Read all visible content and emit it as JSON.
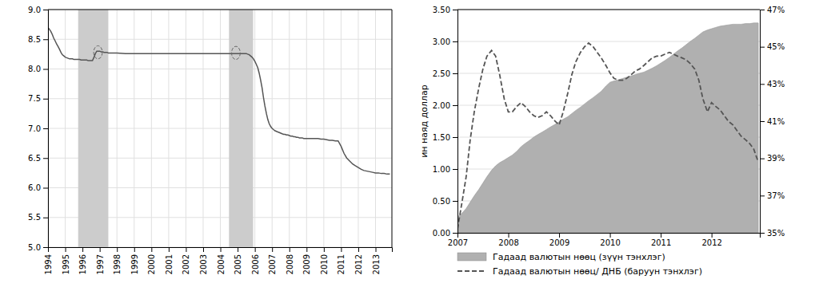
{
  "chart_data": [
    {
      "type": "line",
      "x": [
        1994.0,
        1994.08,
        1994.17,
        1994.25,
        1994.33,
        1994.42,
        1994.5,
        1994.58,
        1994.67,
        1994.75,
        1994.83,
        1994.92,
        1995.0,
        1995.08,
        1995.17,
        1995.25,
        1995.33,
        1995.42,
        1995.5,
        1995.58,
        1995.67,
        1995.75,
        1995.83,
        1995.92,
        1996.0,
        1996.08,
        1996.17,
        1996.25,
        1996.33,
        1996.42,
        1996.5,
        1996.58,
        1996.67,
        1996.75,
        1996.83,
        1996.92,
        1997.0,
        1997.08,
        1997.17,
        1997.25,
        1997.33,
        1997.42,
        1997.5,
        1997.58,
        1997.67,
        1997.75,
        1997.83,
        1997.92,
        1998.0,
        1998.5,
        1999.0,
        1999.5,
        2000.0,
        2000.5,
        2001.0,
        2001.5,
        2002.0,
        2002.5,
        2003.0,
        2003.5,
        2004.0,
        2004.5,
        2005.0,
        2005.08,
        2005.17,
        2005.25,
        2005.33,
        2005.42,
        2005.5,
        2005.58,
        2005.67,
        2005.75,
        2005.83,
        2005.92,
        2006.0,
        2006.08,
        2006.17,
        2006.25,
        2006.33,
        2006.42,
        2006.5,
        2006.58,
        2006.67,
        2006.75,
        2006.83,
        2006.92,
        2007.0,
        2007.08,
        2007.17,
        2007.25,
        2007.33,
        2007.42,
        2007.5,
        2007.58,
        2007.67,
        2007.75,
        2007.83,
        2007.92,
        2008.0,
        2008.08,
        2008.17,
        2008.25,
        2008.33,
        2008.42,
        2008.5,
        2008.58,
        2008.67,
        2008.75,
        2008.83,
        2008.92,
        2009.0,
        2009.17,
        2009.33,
        2009.5,
        2009.67,
        2009.83,
        2010.0,
        2010.17,
        2010.33,
        2010.5,
        2010.67,
        2010.83,
        2011.0,
        2011.17,
        2011.33,
        2011.5,
        2011.67,
        2011.83,
        2012.0,
        2012.17,
        2012.33,
        2012.5,
        2012.67,
        2012.83,
        2013.0,
        2013.17,
        2013.33,
        2013.5,
        2013.67,
        2013.83
      ],
      "series": [
        {
          "color": "#555555",
          "values": [
            8.7,
            8.67,
            8.63,
            8.58,
            8.52,
            8.47,
            8.42,
            8.38,
            8.33,
            8.28,
            8.24,
            8.22,
            8.2,
            8.19,
            8.18,
            8.17,
            8.17,
            8.17,
            8.16,
            8.16,
            8.16,
            8.16,
            8.16,
            8.15,
            8.15,
            8.15,
            8.15,
            8.15,
            8.14,
            8.14,
            8.14,
            8.14,
            8.2,
            8.26,
            8.3,
            8.3,
            8.3,
            8.29,
            8.29,
            8.28,
            8.28,
            8.28,
            8.27,
            8.27,
            8.27,
            8.27,
            8.27,
            8.27,
            8.27,
            8.26,
            8.26,
            8.26,
            8.26,
            8.26,
            8.26,
            8.26,
            8.26,
            8.26,
            8.26,
            8.26,
            8.26,
            8.26,
            8.26,
            8.26,
            8.26,
            8.26,
            8.26,
            8.26,
            8.26,
            8.25,
            8.24,
            8.22,
            8.2,
            8.17,
            8.13,
            8.08,
            8.02,
            7.93,
            7.82,
            7.68,
            7.52,
            7.38,
            7.25,
            7.15,
            7.08,
            7.03,
            7.0,
            6.98,
            6.96,
            6.95,
            6.94,
            6.93,
            6.92,
            6.91,
            6.9,
            6.9,
            6.89,
            6.89,
            6.88,
            6.87,
            6.87,
            6.86,
            6.86,
            6.85,
            6.85,
            6.84,
            6.84,
            6.84,
            6.83,
            6.83,
            6.83,
            6.83,
            6.83,
            6.83,
            6.83,
            6.82,
            6.82,
            6.81,
            6.8,
            6.8,
            6.79,
            6.79,
            6.7,
            6.58,
            6.5,
            6.45,
            6.4,
            6.37,
            6.34,
            6.31,
            6.29,
            6.28,
            6.27,
            6.26,
            6.25,
            6.25,
            6.24,
            6.24,
            6.23,
            6.23
          ]
        }
      ],
      "shaded_regions": [
        {
          "x": [
            1995.75,
            1997.5
          ],
          "color": "#cccccc"
        },
        {
          "x": [
            2004.5,
            2005.9
          ],
          "color": "#cccccc"
        }
      ],
      "circles": [
        {
          "x": 1996.9,
          "y": 8.28,
          "width": 0.5,
          "height": 0.22
        },
        {
          "x": 2004.9,
          "y": 8.27,
          "width": 0.5,
          "height": 0.22
        }
      ],
      "xlim": [
        1994.0,
        2013.95
      ],
      "xticks": [
        1994,
        1995,
        1996,
        1997,
        1998,
        1999,
        2000,
        2001,
        2002,
        2003,
        2004,
        2005,
        2006,
        2007,
        2008,
        2009,
        2010,
        2011,
        2012,
        2013
      ],
      "ylim": [
        5.0,
        9.0
      ],
      "yticks": [
        {
          "value": 5.0,
          "label": "5.0"
        },
        {
          "value": 5.5,
          "label": "5.5"
        },
        {
          "value": 6.0,
          "label": "6.0"
        },
        {
          "value": 6.5,
          "label": "6.5"
        },
        {
          "value": 7.0,
          "label": "7.0"
        },
        {
          "value": 7.5,
          "label": "7.5"
        },
        {
          "value": 8.0,
          "label": "8.0"
        },
        {
          "value": 8.5,
          "label": "8.5"
        },
        {
          "value": 9.0,
          "label": "9.0"
        }
      ],
      "grid": true
    },
    {
      "type": "area",
      "ylabel": "ин наяд доллар",
      "x": [
        2007.0,
        2007.08,
        2007.17,
        2007.25,
        2007.33,
        2007.42,
        2007.5,
        2007.58,
        2007.67,
        2007.75,
        2007.83,
        2007.92,
        2008.0,
        2008.08,
        2008.17,
        2008.25,
        2008.33,
        2008.42,
        2008.5,
        2008.58,
        2008.67,
        2008.75,
        2008.83,
        2008.92,
        2009.0,
        2009.08,
        2009.17,
        2009.25,
        2009.33,
        2009.42,
        2009.5,
        2009.58,
        2009.67,
        2009.75,
        2009.83,
        2009.92,
        2010.0,
        2010.08,
        2010.17,
        2010.25,
        2010.33,
        2010.42,
        2010.5,
        2010.58,
        2010.67,
        2010.75,
        2010.83,
        2010.92,
        2011.0,
        2011.08,
        2011.17,
        2011.25,
        2011.33,
        2011.42,
        2011.5,
        2011.58,
        2011.67,
        2011.75,
        2011.83,
        2011.92,
        2012.0,
        2012.08,
        2012.17,
        2012.25,
        2012.33,
        2012.42,
        2012.5,
        2012.58,
        2012.67,
        2012.75,
        2012.83,
        2012.92
      ],
      "series": [
        {
          "name": "Гадаад валютын нөөц (зүүн тэнхлэг)",
          "type": "area",
          "color": "#b0b0b0",
          "values": [
            0.25,
            0.3,
            0.38,
            0.48,
            0.58,
            0.68,
            0.78,
            0.88,
            0.98,
            1.05,
            1.1,
            1.14,
            1.18,
            1.22,
            1.28,
            1.35,
            1.4,
            1.45,
            1.5,
            1.54,
            1.58,
            1.62,
            1.66,
            1.7,
            1.74,
            1.78,
            1.82,
            1.87,
            1.92,
            1.97,
            2.02,
            2.07,
            2.12,
            2.17,
            2.22,
            2.3,
            2.36,
            2.38,
            2.4,
            2.42,
            2.44,
            2.46,
            2.48,
            2.5,
            2.52,
            2.55,
            2.58,
            2.62,
            2.66,
            2.7,
            2.75,
            2.8,
            2.85,
            2.9,
            2.95,
            3.0,
            3.05,
            3.1,
            3.15,
            3.18,
            3.2,
            3.22,
            3.24,
            3.25,
            3.26,
            3.27,
            3.27,
            3.27,
            3.28,
            3.28,
            3.29,
            3.29
          ]
        },
        {
          "name": "Гадаад валютын нөөц/ ДНБ (баруун тэнхлэг)",
          "type": "line",
          "line_style": "dashed",
          "color": "#555555",
          "axis": "y2",
          "values": [
            0.352,
            0.365,
            0.38,
            0.4,
            0.415,
            0.428,
            0.438,
            0.445,
            0.448,
            0.445,
            0.435,
            0.422,
            0.415,
            0.415,
            0.418,
            0.42,
            0.418,
            0.415,
            0.413,
            0.412,
            0.413,
            0.415,
            0.413,
            0.41,
            0.408,
            0.415,
            0.425,
            0.435,
            0.442,
            0.447,
            0.45,
            0.452,
            0.45,
            0.447,
            0.444,
            0.44,
            0.436,
            0.433,
            0.432,
            0.432,
            0.433,
            0.435,
            0.437,
            0.438,
            0.44,
            0.442,
            0.444,
            0.445,
            0.445,
            0.446,
            0.447,
            0.446,
            0.445,
            0.444,
            0.443,
            0.441,
            0.438,
            0.432,
            0.422,
            0.415,
            0.42,
            0.418,
            0.416,
            0.413,
            0.41,
            0.408,
            0.405,
            0.402,
            0.4,
            0.398,
            0.395,
            0.388
          ]
        }
      ],
      "xlim": [
        2007.0,
        2012.95
      ],
      "xticks": [
        2007,
        2008,
        2009,
        2010,
        2011,
        2012
      ],
      "ylim": [
        0.0,
        3.5
      ],
      "yticks": [
        {
          "value": 0.0,
          "label": "0.00"
        },
        {
          "value": 0.5,
          "label": "0.50"
        },
        {
          "value": 1.0,
          "label": "1.00"
        },
        {
          "value": 1.5,
          "label": "1.50"
        },
        {
          "value": 2.0,
          "label": "2.00"
        },
        {
          "value": 2.5,
          "label": "2.50"
        },
        {
          "value": 3.0,
          "label": "3.00"
        },
        {
          "value": 3.5,
          "label": "3.50"
        }
      ],
      "y2lim": [
        0.35,
        0.47
      ],
      "y2ticks": [
        {
          "value": 0.35,
          "label": "35%"
        },
        {
          "value": 0.37,
          "label": "37%"
        },
        {
          "value": 0.39,
          "label": "39%"
        },
        {
          "value": 0.41,
          "label": "41%"
        },
        {
          "value": 0.43,
          "label": "43%"
        },
        {
          "value": 0.45,
          "label": "45%"
        },
        {
          "value": 0.47,
          "label": "47%"
        }
      ],
      "grid": "y",
      "legend": "bottom"
    }
  ]
}
